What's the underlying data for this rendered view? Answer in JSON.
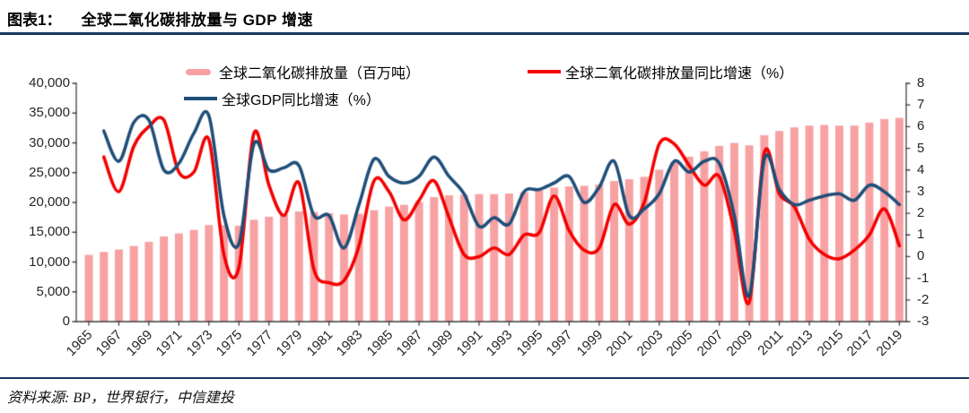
{
  "header": {
    "label": "图表1：",
    "title": "全球二氧化碳排放量与 GDP 增速"
  },
  "footer": {
    "source": "资料来源: BP，世界银行，中信建投"
  },
  "colors": {
    "rule": "#17375E",
    "axis": "#3f3f3f",
    "bar": "#F7A1A3",
    "co2_growth_line": "#F40000",
    "gdp_growth_line": "#1F4E79"
  },
  "chart_data": {
    "type": "combo-bar-line",
    "grid": false,
    "legend_position": "top",
    "x": [
      1965,
      1966,
      1967,
      1968,
      1969,
      1970,
      1971,
      1972,
      1973,
      1974,
      1975,
      1976,
      1977,
      1978,
      1979,
      1980,
      1981,
      1982,
      1983,
      1984,
      1985,
      1986,
      1987,
      1988,
      1989,
      1990,
      1991,
      1992,
      1993,
      1994,
      1995,
      1996,
      1997,
      1998,
      1999,
      2000,
      2001,
      2002,
      2003,
      2004,
      2005,
      2006,
      2007,
      2008,
      2009,
      2010,
      2011,
      2012,
      2013,
      2014,
      2015,
      2016,
      2017,
      2018,
      2019
    ],
    "x_tick_labels": [
      "1965",
      "1967",
      "1969",
      "1971",
      "1973",
      "1975",
      "1977",
      "1979",
      "1981",
      "1983",
      "1985",
      "1987",
      "1989",
      "1991",
      "1993",
      "1995",
      "1997",
      "1999",
      "2001",
      "2003",
      "2005",
      "2007",
      "2009",
      "2011",
      "2013",
      "2015",
      "2017",
      "2019"
    ],
    "left_axis": {
      "min": 0,
      "max": 40000,
      "step": 5000,
      "tick_labels": [
        "0",
        "5,000",
        "10,000",
        "15,000",
        "20,000",
        "25,000",
        "30,000",
        "35,000",
        "40,000"
      ]
    },
    "right_axis": {
      "min": -3,
      "max": 8,
      "step": 1,
      "tick_labels": [
        "-3",
        "-2",
        "-1",
        "0",
        "1",
        "2",
        "3",
        "4",
        "5",
        "6",
        "7",
        "8"
      ]
    },
    "series": [
      {
        "name": "全球二氧化碳排放量（百万吨）",
        "type": "bar",
        "axis": "left",
        "color": "#F7A1A3",
        "values": [
          11200,
          11700,
          12100,
          12700,
          13400,
          14300,
          14800,
          15400,
          16200,
          16200,
          16100,
          17100,
          17600,
          18000,
          18500,
          18400,
          18200,
          18000,
          18100,
          18700,
          19300,
          19600,
          20100,
          20900,
          21200,
          21300,
          21400,
          21400,
          21500,
          21700,
          22000,
          22500,
          22700,
          22800,
          23000,
          23600,
          23900,
          24300,
          25500,
          26700,
          27700,
          28600,
          29500,
          30000,
          29600,
          31300,
          32000,
          32600,
          32900,
          33000,
          32900,
          32900,
          33400,
          34000,
          34200
        ]
      },
      {
        "name": "全球二氧化碳排放量同比增速（%）",
        "type": "line",
        "axis": "right",
        "color": "#F40000",
        "values": [
          null,
          4.6,
          3.0,
          5.1,
          6.0,
          6.3,
          3.9,
          3.9,
          5.4,
          0.1,
          -0.5,
          5.7,
          3.3,
          1.9,
          3.4,
          -0.6,
          -1.2,
          -1.1,
          0.5,
          3.5,
          3.0,
          1.7,
          2.6,
          3.5,
          1.8,
          0.1,
          0.0,
          0.4,
          0.1,
          1.0,
          1.1,
          2.8,
          1.2,
          0.3,
          0.4,
          2.4,
          1.5,
          2.5,
          5.2,
          5.2,
          4.2,
          3.3,
          3.7,
          1.2,
          -2.1,
          4.8,
          2.9,
          2.3,
          0.8,
          0.1,
          -0.1,
          0.3,
          1.0,
          2.2,
          0.5
        ]
      },
      {
        "name": "全球GDP同比增速（%）",
        "type": "line",
        "axis": "right",
        "color": "#1F4E79",
        "values": [
          null,
          5.8,
          4.4,
          6.2,
          6.3,
          4.0,
          4.3,
          5.7,
          6.5,
          1.9,
          0.6,
          5.2,
          4.0,
          4.1,
          4.2,
          1.9,
          1.9,
          0.4,
          2.4,
          4.5,
          3.7,
          3.4,
          3.7,
          4.6,
          3.7,
          2.9,
          1.4,
          1.8,
          1.5,
          3.0,
          3.1,
          3.4,
          3.7,
          2.5,
          3.2,
          4.4,
          1.9,
          2.2,
          2.9,
          4.4,
          3.9,
          4.4,
          4.3,
          1.9,
          -1.8,
          4.5,
          3.1,
          2.4,
          2.6,
          2.8,
          2.9,
          2.6,
          3.3,
          3.0,
          2.4
        ]
      }
    ]
  }
}
